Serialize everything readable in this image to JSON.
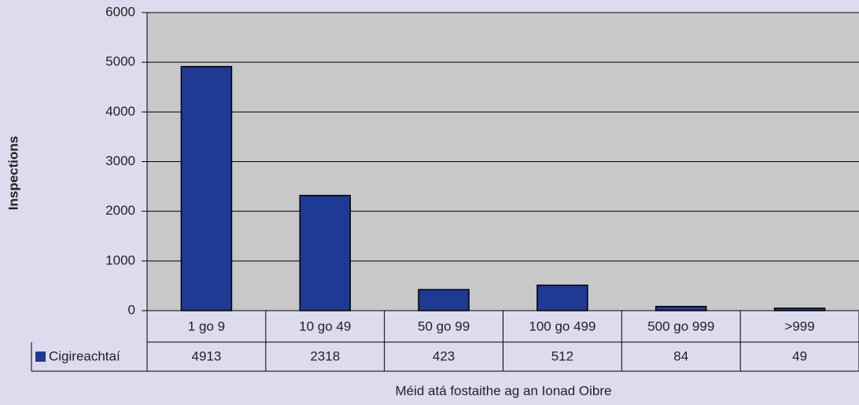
{
  "chart_data": {
    "type": "bar",
    "categories": [
      "1 go 9",
      "10 go 49",
      "50 go 99",
      "100 go 499",
      "500 go 999",
      ">999"
    ],
    "series": [
      {
        "name": "Cigireachtaí",
        "color": "#1f3a93",
        "values": [
          4913,
          2318,
          423,
          512,
          84,
          49
        ]
      }
    ],
    "ylim": [
      0,
      6000
    ],
    "yticks": [
      0,
      1000,
      2000,
      3000,
      4000,
      5000,
      6000
    ],
    "grid": true,
    "x_label": "Méid atá fostaithe ag an Ionad Oibre",
    "y_label": "Inspections"
  }
}
